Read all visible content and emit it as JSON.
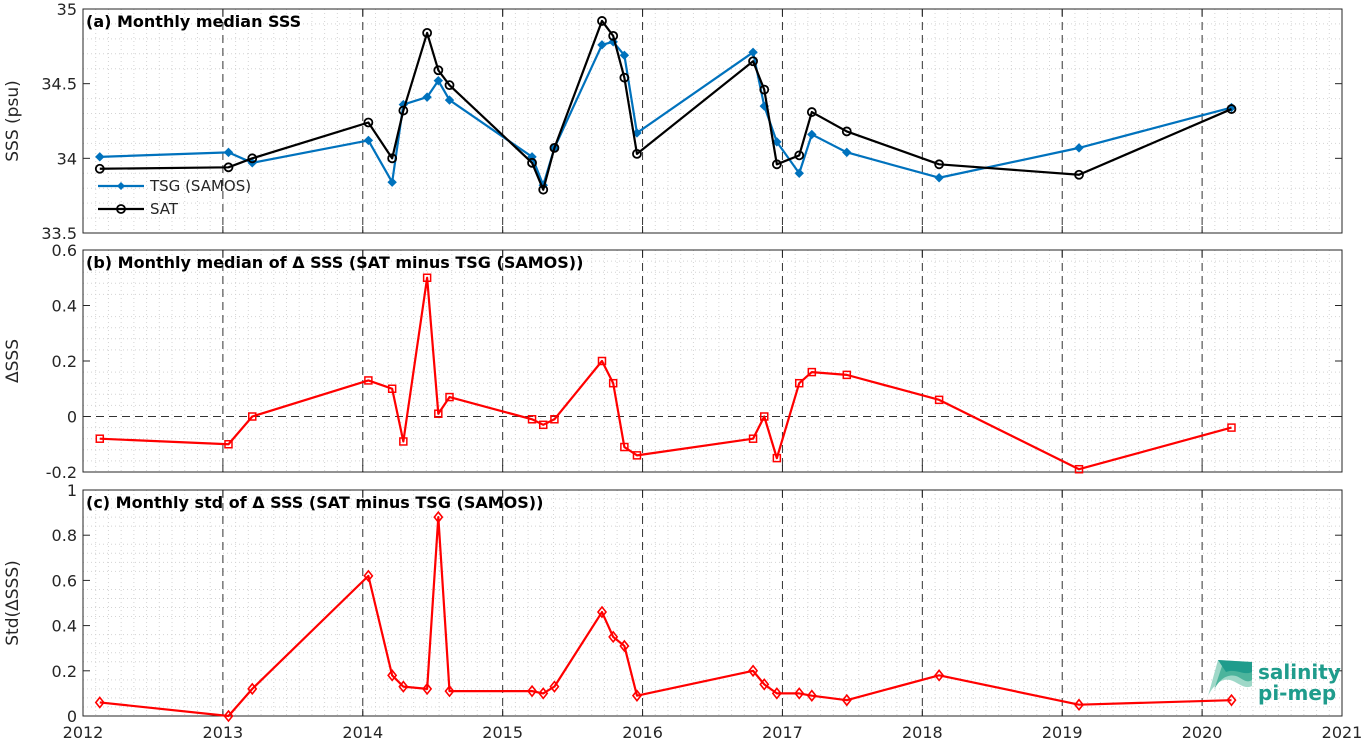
{
  "x_axis": {
    "ticks": [
      2012,
      2013,
      2014,
      2015,
      2016,
      2017,
      2018,
      2019,
      2020,
      2021
    ],
    "xlim": [
      2012,
      2021
    ]
  },
  "logo": {
    "line1": "salinity",
    "line2": "pi-mep"
  },
  "legend": {
    "tsg": "TSG (SAMOS)",
    "sat": "SAT"
  },
  "chart_data": [
    {
      "type": "line",
      "title": "(a) Monthly median SSS",
      "ylabel": "SSS (psu)",
      "ylim": [
        33.5,
        35
      ],
      "yticks": [
        "33.5",
        "34",
        "34.5",
        "35"
      ],
      "yticks_values": [
        33.5,
        34,
        34.5,
        35
      ],
      "grid": true,
      "legend_placement": "lower-left",
      "series": [
        {
          "name": "TSG (SAMOS)",
          "color": "#0072BD",
          "marker": "diamond-filled",
          "x": [
            2012.12,
            2013.04,
            2013.21,
            2014.04,
            2014.21,
            2014.29,
            2014.46,
            2014.54,
            2014.62,
            2015.21,
            2015.29,
            2015.37,
            2015.71,
            2015.79,
            2015.87,
            2015.96,
            2016.79,
            2016.87,
            2016.96,
            2017.12,
            2017.21,
            2017.46,
            2018.12,
            2019.12,
            2020.21
          ],
          "y": [
            34.01,
            34.04,
            33.97,
            34.12,
            33.84,
            34.36,
            34.41,
            34.52,
            34.39,
            34.01,
            33.82,
            34.07,
            34.76,
            34.78,
            34.69,
            34.17,
            34.71,
            34.35,
            34.11,
            33.9,
            34.16,
            34.04,
            33.87,
            34.07,
            34.34
          ]
        },
        {
          "name": "SAT",
          "color": "#000000",
          "marker": "circle-open",
          "x": [
            2012.12,
            2013.04,
            2013.21,
            2014.04,
            2014.21,
            2014.29,
            2014.46,
            2014.54,
            2014.62,
            2015.21,
            2015.29,
            2015.37,
            2015.71,
            2015.79,
            2015.87,
            2015.96,
            2016.79,
            2016.87,
            2016.96,
            2017.12,
            2017.21,
            2017.46,
            2018.12,
            2019.12,
            2020.21
          ],
          "y": [
            33.93,
            33.94,
            34.0,
            34.24,
            34.0,
            34.32,
            34.84,
            34.59,
            34.49,
            33.97,
            33.79,
            34.07,
            34.92,
            34.82,
            34.54,
            34.03,
            34.65,
            34.46,
            33.96,
            34.02,
            34.31,
            34.18,
            33.96,
            33.89,
            34.33
          ]
        }
      ]
    },
    {
      "type": "line",
      "title": "(b) Monthly median of Δ SSS (SAT minus TSG (SAMOS))",
      "ylabel": "ΔSSS",
      "ylim": [
        -0.2,
        0.6
      ],
      "yticks": [
        "-0.2",
        "0",
        "0.2",
        "0.4",
        "0.6"
      ],
      "yticks_values": [
        -0.2,
        0,
        0.2,
        0.4,
        0.6
      ],
      "grid": true,
      "zero_line": true,
      "series": [
        {
          "color": "#FF0000",
          "marker": "square-open",
          "x": [
            2012.12,
            2013.04,
            2013.21,
            2014.04,
            2014.21,
            2014.29,
            2014.46,
            2014.54,
            2014.62,
            2015.21,
            2015.29,
            2015.37,
            2015.71,
            2015.79,
            2015.87,
            2015.96,
            2016.79,
            2016.87,
            2016.96,
            2017.12,
            2017.21,
            2017.46,
            2018.12,
            2019.12,
            2020.21
          ],
          "y": [
            -0.08,
            -0.1,
            0.0,
            0.13,
            0.1,
            -0.09,
            0.5,
            0.01,
            0.07,
            -0.01,
            -0.03,
            -0.01,
            0.2,
            0.12,
            -0.11,
            -0.14,
            -0.08,
            0.0,
            -0.15,
            0.12,
            0.16,
            0.15,
            0.06,
            -0.19,
            -0.04
          ]
        }
      ]
    },
    {
      "type": "line",
      "title": "(c) Monthly std of Δ SSS (SAT minus TSG (SAMOS))",
      "ylabel": "Std(ΔSSS)",
      "ylim": [
        0,
        1
      ],
      "yticks": [
        "0",
        "0.2",
        "0.4",
        "0.6",
        "0.8",
        "1"
      ],
      "yticks_values": [
        0,
        0.2,
        0.4,
        0.6,
        0.8,
        1
      ],
      "grid": true,
      "series": [
        {
          "color": "#FF0000",
          "marker": "diamond-open",
          "x": [
            2012.12,
            2013.04,
            2013.21,
            2014.04,
            2014.21,
            2014.29,
            2014.46,
            2014.54,
            2014.62,
            2015.21,
            2015.29,
            2015.37,
            2015.71,
            2015.79,
            2015.87,
            2015.96,
            2016.79,
            2016.87,
            2016.96,
            2017.12,
            2017.21,
            2017.46,
            2018.12,
            2019.12,
            2020.21
          ],
          "y": [
            0.06,
            0.0,
            0.12,
            0.62,
            0.18,
            0.13,
            0.12,
            0.88,
            0.11,
            0.11,
            0.1,
            0.13,
            0.46,
            0.35,
            0.31,
            0.09,
            0.2,
            0.14,
            0.1,
            0.1,
            0.09,
            0.07,
            0.18,
            0.05,
            0.07
          ]
        }
      ]
    }
  ]
}
